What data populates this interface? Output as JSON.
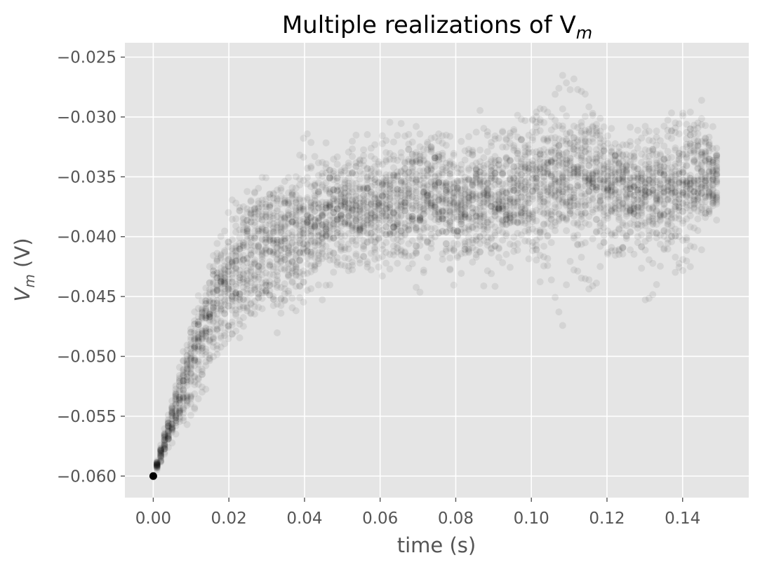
{
  "chart_data": {
    "type": "scatter",
    "title": "Multiple realizations of V",
    "title_sub": "m",
    "xlabel": "time (s)",
    "ylabel": "V",
    "ylabel_sub": "m",
    "ylabel_unit": " (V)",
    "xlim": [
      -0.0075,
      0.1575
    ],
    "ylim": [
      -0.0618,
      -0.0238
    ],
    "xticks": [
      0.0,
      0.02,
      0.04,
      0.06,
      0.08,
      0.1,
      0.12,
      0.14
    ],
    "xtick_labels": [
      "0.00",
      "0.02",
      "0.04",
      "0.06",
      "0.08",
      "0.10",
      "0.12",
      "0.14"
    ],
    "yticks": [
      -0.06,
      -0.055,
      -0.05,
      -0.045,
      -0.04,
      -0.035,
      -0.03,
      -0.025
    ],
    "ytick_labels": [
      "−0.060",
      "−0.055",
      "−0.050",
      "−0.045",
      "−0.040",
      "−0.035",
      "−0.030",
      "−0.025"
    ],
    "grid": true,
    "background_color": "#e5e5e5",
    "grid_color": "#ffffff",
    "point_color": "#000000",
    "point_alpha": 0.07,
    "initial_point": {
      "x": 0.0,
      "y": -0.06
    },
    "mean_curve": [
      {
        "x": 0.0,
        "y": -0.06
      },
      {
        "x": 0.005,
        "y": -0.0555
      },
      {
        "x": 0.01,
        "y": -0.0515
      },
      {
        "x": 0.015,
        "y": -0.0475
      },
      {
        "x": 0.02,
        "y": -0.0445
      },
      {
        "x": 0.025,
        "y": -0.0425
      },
      {
        "x": 0.03,
        "y": -0.0405
      },
      {
        "x": 0.035,
        "y": -0.0395
      },
      {
        "x": 0.04,
        "y": -0.039
      },
      {
        "x": 0.05,
        "y": -0.038
      },
      {
        "x": 0.06,
        "y": -0.0372
      },
      {
        "x": 0.07,
        "y": -0.0368
      },
      {
        "x": 0.08,
        "y": -0.0365
      },
      {
        "x": 0.09,
        "y": -0.0363
      },
      {
        "x": 0.1,
        "y": -0.0362
      },
      {
        "x": 0.11,
        "y": -0.036
      },
      {
        "x": 0.12,
        "y": -0.0358
      },
      {
        "x": 0.13,
        "y": -0.0358
      },
      {
        "x": 0.14,
        "y": -0.0358
      },
      {
        "x": 0.149,
        "y": -0.0357
      }
    ],
    "spread": [
      {
        "x": 0.0,
        "sd": 0.0
      },
      {
        "x": 0.01,
        "sd": 0.0012
      },
      {
        "x": 0.02,
        "sd": 0.0018
      },
      {
        "x": 0.04,
        "sd": 0.0022
      },
      {
        "x": 0.06,
        "sd": 0.0025
      },
      {
        "x": 0.1,
        "sd": 0.0026
      },
      {
        "x": 0.149,
        "sd": 0.0026
      }
    ],
    "realizations": 30,
    "samples_per_realization": 150,
    "x_max": 0.149
  }
}
